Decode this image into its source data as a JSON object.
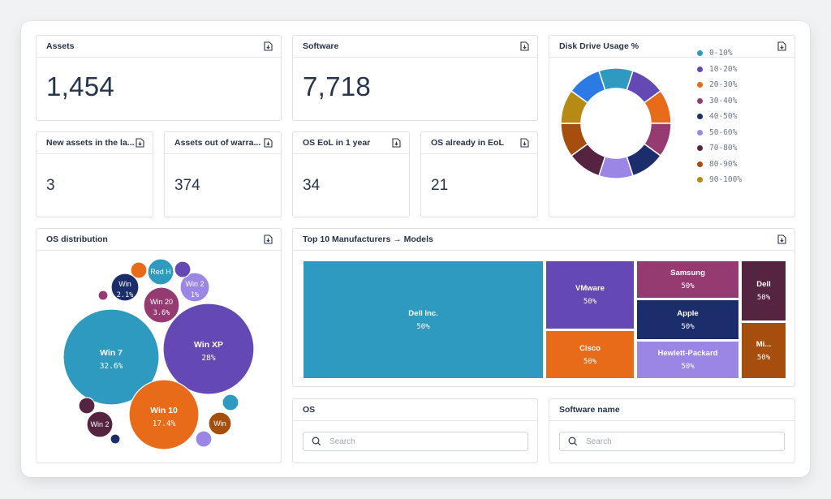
{
  "cards": {
    "assets": {
      "title": "Assets",
      "value": "1,454"
    },
    "software": {
      "title": "Software",
      "value": "7,718"
    },
    "new_assets": {
      "title": "New assets in the la...",
      "value": "3"
    },
    "out_of_warranty": {
      "title": "Assets out of warra...",
      "value": "374"
    },
    "os_eol_1y": {
      "title": "OS EoL in 1 year",
      "value": "34"
    },
    "os_eol": {
      "title": "OS already in EoL",
      "value": "21"
    },
    "disk": {
      "title": "Disk Drive Usage %"
    },
    "os_dist": {
      "title": "OS distribution"
    },
    "manufacturers": {
      "title": "Top 10 Manufacturers → Models"
    },
    "os_search": {
      "title": "OS",
      "placeholder": "Search"
    },
    "software_search": {
      "title": "Software name",
      "placeholder": "Search"
    }
  },
  "icons": {
    "download": "download-icon",
    "search": "search-icon"
  },
  "chart_data": [
    {
      "type": "pie",
      "variant": "donut",
      "title": "Disk Drive Usage %",
      "legend_position": "right",
      "slices": [
        {
          "label": "0-10%",
          "value": 1,
          "color": "#2e9abf"
        },
        {
          "label": "10-20%",
          "value": 1,
          "color": "#6448b4"
        },
        {
          "label": "20-30%",
          "value": 1,
          "color": "#e86b1a"
        },
        {
          "label": "30-40%",
          "value": 1,
          "color": "#963a72"
        },
        {
          "label": "40-50%",
          "value": 1,
          "color": "#1b2d6b"
        },
        {
          "label": "50-60%",
          "value": 1,
          "color": "#9b86e6"
        },
        {
          "label": "70-80%",
          "value": 1,
          "color": "#552441"
        },
        {
          "label": "80-90%",
          "value": 1,
          "color": "#a54e0e"
        },
        {
          "label": "90-100%",
          "value": 1,
          "color": "#b78a13"
        },
        {
          "label": "",
          "value": 1,
          "color": "#2c7be5"
        }
      ]
    },
    {
      "type": "bubble",
      "title": "OS distribution",
      "bubbles": [
        {
          "label": "Win 7",
          "value": "32.6%",
          "color": "#2e9abf"
        },
        {
          "label": "Win XP",
          "value": "28%",
          "color": "#6448b4"
        },
        {
          "label": "Win 10",
          "value": "17.4%",
          "color": "#e86b1a"
        },
        {
          "label": "Win 20",
          "value": "3.6%",
          "color": "#963a72"
        },
        {
          "label": "Win",
          "value": "2.1%",
          "color": "#1b2d6b"
        },
        {
          "label": "Red H",
          "value": "",
          "color": "#2e9abf"
        },
        {
          "label": "Win 2",
          "value": "1%",
          "color": "#9b86e6"
        },
        {
          "label": "Win 2",
          "value": "",
          "color": "#552441"
        },
        {
          "label": "Win",
          "value": "",
          "color": "#a54e0e"
        },
        {
          "label": "",
          "value": "",
          "color": "#e86b1a"
        },
        {
          "label": "",
          "value": "",
          "color": "#6448b4"
        },
        {
          "label": "",
          "value": "",
          "color": "#963a72"
        },
        {
          "label": "",
          "value": "",
          "color": "#552441"
        },
        {
          "label": "",
          "value": "",
          "color": "#a54e0e"
        },
        {
          "label": "",
          "value": "",
          "color": "#2e9abf"
        },
        {
          "label": "",
          "value": "",
          "color": "#1b2d6b"
        },
        {
          "label": "",
          "value": "",
          "color": "#9b86e6"
        }
      ]
    },
    {
      "type": "treemap",
      "title": "Top 10 Manufacturers → Models",
      "items": [
        {
          "label": "Dell Inc.",
          "value": "50%",
          "color": "#2e9abf"
        },
        {
          "label": "VMware",
          "value": "50%",
          "color": "#6448b4"
        },
        {
          "label": "Cisco",
          "value": "50%",
          "color": "#e86b1a"
        },
        {
          "label": "Samsung",
          "value": "50%",
          "color": "#963a72"
        },
        {
          "label": "Apple",
          "value": "50%",
          "color": "#1b2d6b"
        },
        {
          "label": "Hewlett-Packard",
          "value": "50%",
          "color": "#9b86e6"
        },
        {
          "label": "Dell",
          "value": "50%",
          "color": "#552441"
        },
        {
          "label": "Mi...",
          "value": "50%",
          "color": "#a54e0e"
        }
      ]
    }
  ]
}
